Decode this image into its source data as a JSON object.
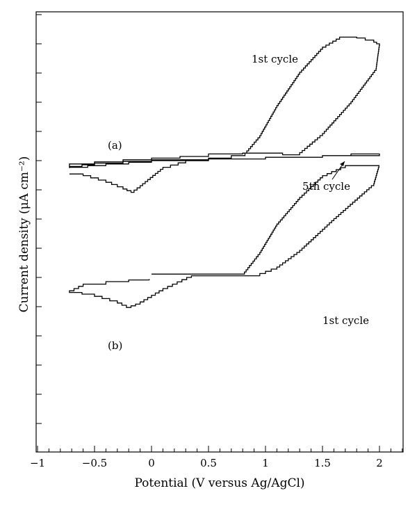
{
  "chart_data": {
    "type": "line",
    "title": "",
    "xlabel": "Potential (V versus Ag/AgCl)",
    "ylabel": "Current density (μA cm⁻²)",
    "xlim": [
      -1,
      2.2
    ],
    "x_ticks": [
      -1,
      -0.5,
      0,
      0.5,
      1,
      1.5,
      2
    ],
    "x_tick_labels": [
      "−1",
      "−0.5",
      "0",
      "0.5",
      "1",
      "1.5",
      "2"
    ],
    "y_ticks_shown_without_labels": true,
    "panels": [
      {
        "label": "(a)",
        "series": [
          {
            "annotation": "1st cycle",
            "points": [
              [
                -0.72,
                -0.8
              ],
              [
                -0.6,
                -0.9
              ],
              [
                -0.4,
                -1.3
              ],
              [
                -0.25,
                -1.7
              ],
              [
                -0.18,
                -1.9
              ],
              [
                -0.1,
                -1.5
              ],
              [
                0.1,
                -0.4
              ],
              [
                0.3,
                0.0
              ],
              [
                0.5,
                0.15
              ],
              [
                0.7,
                0.3
              ],
              [
                0.82,
                0.45
              ],
              [
                0.95,
                1.5
              ],
              [
                1.1,
                3.3
              ],
              [
                1.3,
                5.3
              ],
              [
                1.5,
                6.8
              ],
              [
                1.65,
                7.4
              ],
              [
                1.8,
                7.35
              ],
              [
                1.95,
                7.1
              ],
              [
                2.0,
                6.9
              ],
              [
                1.97,
                5.4
              ],
              [
                1.75,
                3.4
              ],
              [
                1.5,
                1.5
              ],
              [
                1.3,
                0.35
              ],
              [
                1.15,
                0.45
              ],
              [
                1.0,
                0.45
              ],
              [
                0.8,
                0.4
              ],
              [
                0.5,
                0.25
              ],
              [
                0.0,
                0.05
              ],
              [
                -0.5,
                -0.2
              ],
              [
                -0.72,
                -0.35
              ]
            ]
          },
          {
            "annotation": "5th cycle",
            "points": [
              [
                -0.72,
                -0.4
              ],
              [
                -0.4,
                -0.2
              ],
              [
                0.0,
                0.0
              ],
              [
                0.5,
                0.1
              ],
              [
                1.0,
                0.2
              ],
              [
                1.5,
                0.3
              ],
              [
                2.0,
                0.4
              ],
              [
                1.5,
                0.2
              ],
              [
                1.0,
                0.1
              ],
              [
                0.5,
                0.05
              ],
              [
                0.0,
                -0.05
              ],
              [
                -0.5,
                -0.25
              ],
              [
                -0.72,
                -0.45
              ]
            ]
          }
        ]
      },
      {
        "label": "(b)",
        "series": [
          {
            "annotation": "1st cycle",
            "points": [
              [
                0.0,
                -6.8
              ],
              [
                0.4,
                -6.8
              ],
              [
                0.8,
                -6.8
              ],
              [
                0.95,
                -5.5
              ],
              [
                1.1,
                -3.8
              ],
              [
                1.3,
                -2.2
              ],
              [
                1.5,
                -0.9
              ],
              [
                1.7,
                -0.3
              ],
              [
                2.0,
                -0.3
              ],
              [
                1.95,
                -1.5
              ],
              [
                1.6,
                -3.6
              ],
              [
                1.3,
                -5.5
              ],
              [
                1.1,
                -6.5
              ],
              [
                0.95,
                -6.9
              ],
              [
                0.6,
                -6.9
              ],
              [
                0.35,
                -7.0
              ],
              [
                0.1,
                -7.8
              ],
              [
                -0.1,
                -8.6
              ],
              [
                -0.18,
                -8.8
              ],
              [
                -0.3,
                -8.4
              ],
              [
                -0.5,
                -8.0
              ],
              [
                -0.72,
                -7.8
              ],
              [
                -0.6,
                -7.4
              ],
              [
                -0.4,
                -7.25
              ],
              [
                -0.2,
                -7.15
              ],
              [
                -0.02,
                -7.1
              ]
            ]
          }
        ]
      }
    ]
  }
}
